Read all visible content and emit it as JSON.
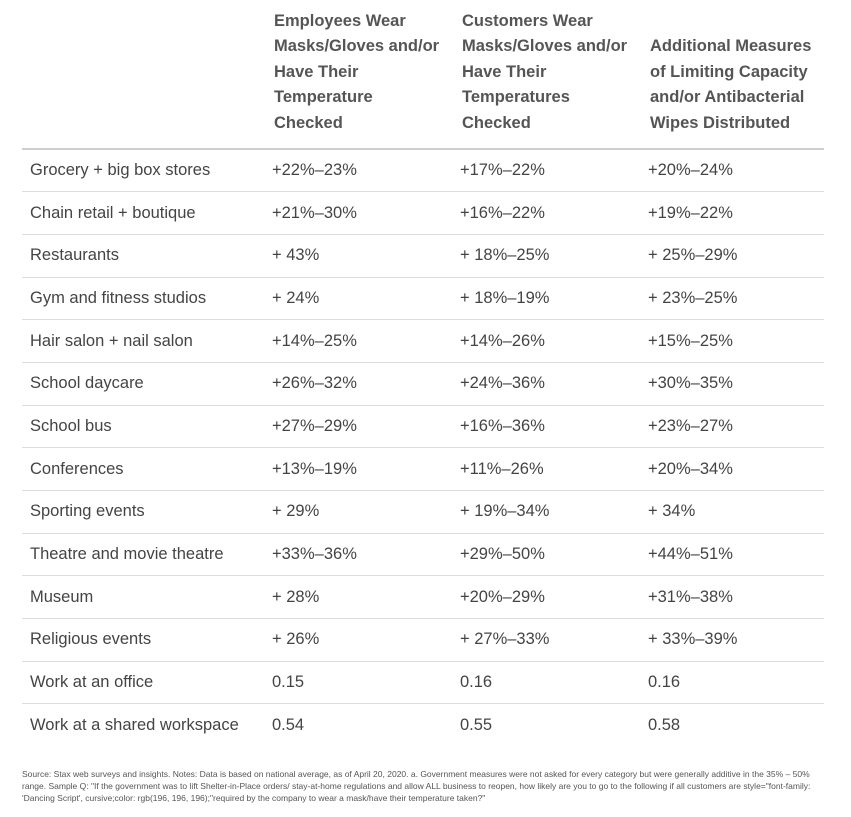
{
  "table": {
    "headers": [
      "",
      "Employees Wear Masks/Gloves and/or Have Their Temperature Checked",
      "Customers Wear Masks/Gloves and/or Have Their Temperatures Checked",
      "Additional Measures of Limiting Capacity and/or Antibacterial Wipes Distributed"
    ],
    "rows": [
      [
        "Grocery + big box stores",
        "+22%–23%",
        "+17%–22%",
        "+20%–24%"
      ],
      [
        "Chain retail + boutique",
        "+21%–30%",
        "+16%–22%",
        "+19%–22%"
      ],
      [
        "Restaurants",
        "+ 43%",
        "+ 18%–25%",
        "+ 25%–29%"
      ],
      [
        "Gym and fitness studios",
        "+ 24%",
        "+ 18%–19%",
        "+ 23%–25%"
      ],
      [
        "Hair salon + nail salon",
        "+14%–25%",
        "+14%–26%",
        "+15%–25%"
      ],
      [
        "School daycare",
        "+26%–32%",
        "+24%–36%",
        "+30%–35%"
      ],
      [
        "School bus",
        "+27%–29%",
        "+16%–36%",
        "+23%–27%"
      ],
      [
        "Conferences",
        "+13%–19%",
        "+11%–26%",
        "+20%–34%"
      ],
      [
        "Sporting events",
        "+ 29%",
        "+ 19%–34%",
        "+ 34%"
      ],
      [
        "Theatre and movie theatre",
        "+33%–36%",
        "+29%–50%",
        "+44%–51%"
      ],
      [
        "Museum",
        "+ 28%",
        "+20%–29%",
        "+31%–38%"
      ],
      [
        "Religious events",
        "+ 26%",
        "+ 27%–33%",
        "+ 33%–39%"
      ],
      [
        "Work at an office",
        "0.15",
        "0.16",
        "0.16"
      ],
      [
        "Work at a shared workspace",
        "0.54",
        "0.55",
        "0.58"
      ]
    ]
  },
  "footnote": "Source: Stax web surveys and insights. Notes: Data is based on national average, as of April 20, 2020. a. Government measures were not asked for every category but were generally additive in the 35% – 50% range. Sample Q: \"If the government was to lift Shelter-in-Place orders/ stay-at-home regulations and allow ALL business to reopen, how likely are you to go to the following if all customers are style=\"font-family: 'Dancing Script', cursive;color: rgb(196, 196, 196);\"required by the company to wear a mask/have their temperature taken?\""
}
